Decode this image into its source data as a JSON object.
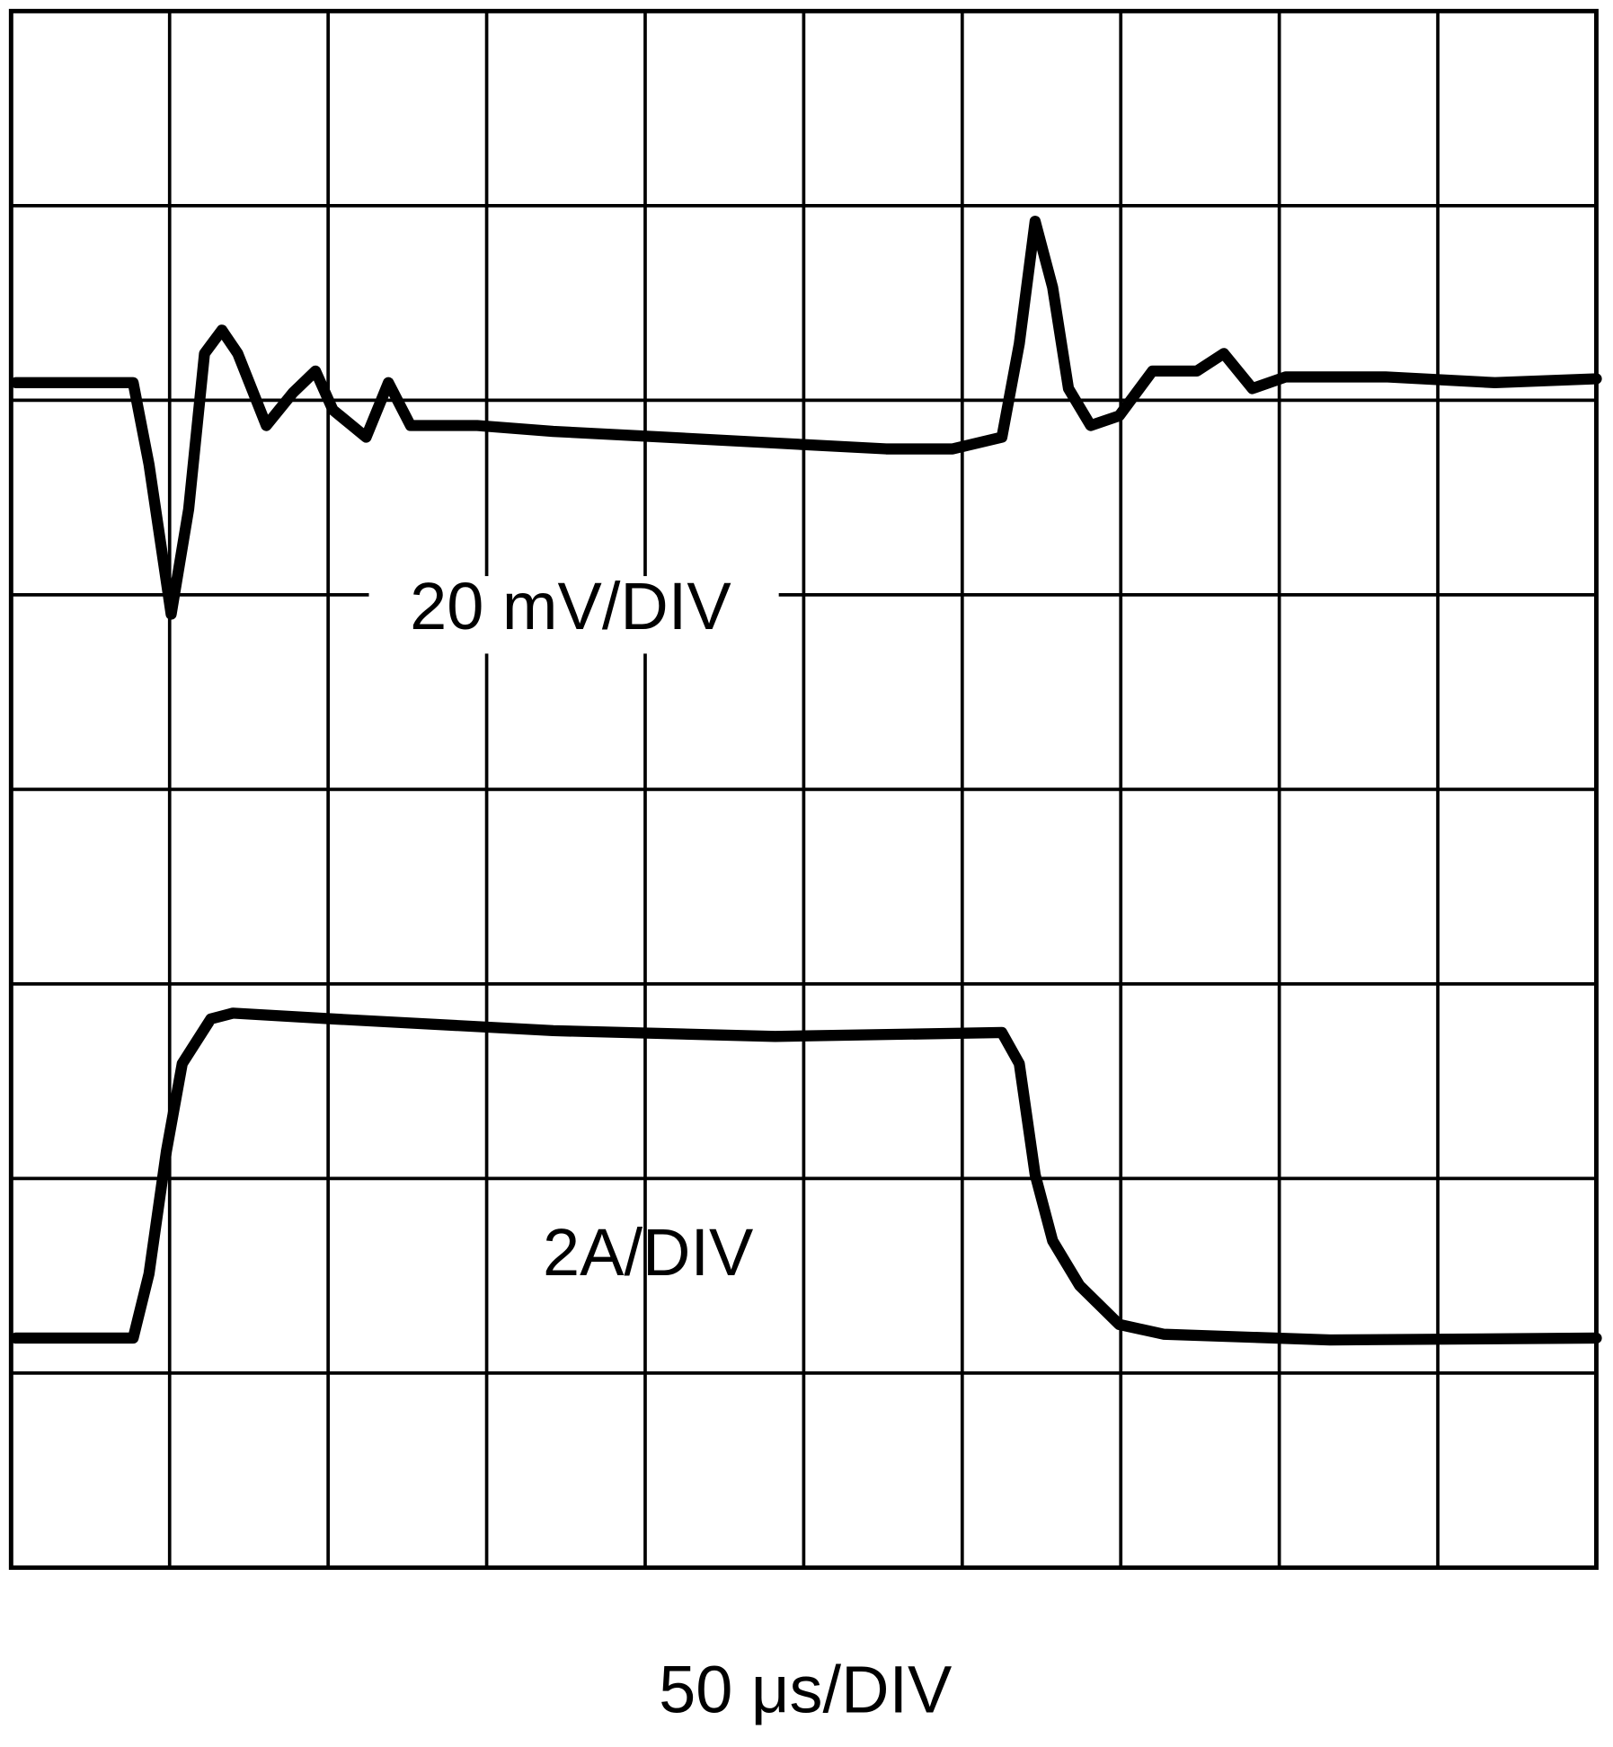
{
  "chart_data": {
    "type": "line",
    "xlabel": "50 μs/DIV",
    "annotations": [
      "20 mV/DIV",
      "2A/DIV"
    ],
    "xlim": [
      0,
      10
    ],
    "ylim": [
      0,
      8
    ],
    "xticks": [
      0,
      1,
      2,
      3,
      4,
      5,
      6,
      7,
      8,
      9,
      10
    ],
    "yticks": [
      0,
      1,
      2,
      3,
      4,
      5,
      6,
      7,
      8
    ],
    "grid": true,
    "series": [
      {
        "color": "#000000",
        "x": [
          0.03,
          0.77,
          0.87,
          1.01,
          1.12,
          1.22,
          1.33,
          1.43,
          1.61,
          1.78,
          1.92,
          2.03,
          2.24,
          2.38,
          2.52,
          2.94,
          3.42,
          4.12,
          4.82,
          5.52,
          5.94,
          6.25,
          6.36,
          6.46,
          6.57,
          6.67,
          6.81,
          6.99,
          7.2,
          7.48,
          7.65,
          7.83,
          8.04,
          8.67,
          9.36,
          10
        ],
        "values": [
          6.09,
          6.09,
          5.67,
          4.9,
          5.44,
          6.24,
          6.36,
          6.24,
          5.87,
          6.04,
          6.15,
          5.95,
          5.81,
          6.09,
          5.87,
          5.87,
          5.84,
          5.81,
          5.78,
          5.75,
          5.75,
          5.81,
          6.29,
          6.92,
          6.58,
          6.06,
          5.87,
          5.92,
          6.15,
          6.15,
          6.24,
          6.06,
          6.12,
          6.12,
          6.09,
          6.11
        ]
      },
      {
        "color": "#000000",
        "x": [
          0.03,
          0.77,
          0.87,
          0.98,
          1.08,
          1.26,
          1.4,
          2.03,
          3.42,
          4.82,
          6.25,
          6.36,
          6.46,
          6.57,
          6.74,
          6.99,
          7.27,
          8.32,
          10
        ],
        "values": [
          1.18,
          1.18,
          1.51,
          2.14,
          2.59,
          2.82,
          2.85,
          2.82,
          2.76,
          2.73,
          2.75,
          2.59,
          2.02,
          1.68,
          1.45,
          1.25,
          1.2,
          1.17,
          1.18
        ]
      }
    ]
  }
}
